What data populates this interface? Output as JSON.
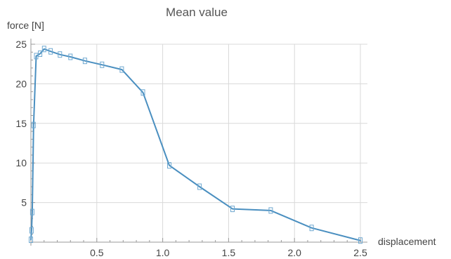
{
  "chart_data": {
    "type": "line",
    "title": "Mean value",
    "xlabel": "displacement",
    "ylabel": "force [N]",
    "xlim": [
      0,
      2.5
    ],
    "ylim": [
      0,
      25
    ],
    "grid": true,
    "x_ticks": [
      0.5,
      1.0,
      1.5,
      2.0,
      2.5
    ],
    "x_tick_labels": [
      "0.5",
      "1.0",
      "1.5",
      "2.0",
      "2.5"
    ],
    "y_ticks": [
      5,
      10,
      15,
      20,
      25
    ],
    "y_tick_labels": [
      "5",
      "10",
      "15",
      "20",
      "25"
    ],
    "colors": {
      "series": "#4a8fc0",
      "marker": "#6fa8d0"
    },
    "series": [
      {
        "x": [
          0,
          0.005,
          0.01,
          0.02,
          0.04,
          0.07,
          0.1,
          0.15,
          0.22,
          0.3,
          0.41,
          0.54,
          0.69,
          0.85,
          1.05,
          1.28,
          1.53,
          1.82,
          2.13,
          2.5
        ],
        "y": [
          0.3,
          1.5,
          3.8,
          14.8,
          23.5,
          23.8,
          24.4,
          24.1,
          23.7,
          23.4,
          22.9,
          22.4,
          21.8,
          18.9,
          9.7,
          7.0,
          4.2,
          4.0,
          1.8,
          0.2
        ]
      }
    ]
  }
}
